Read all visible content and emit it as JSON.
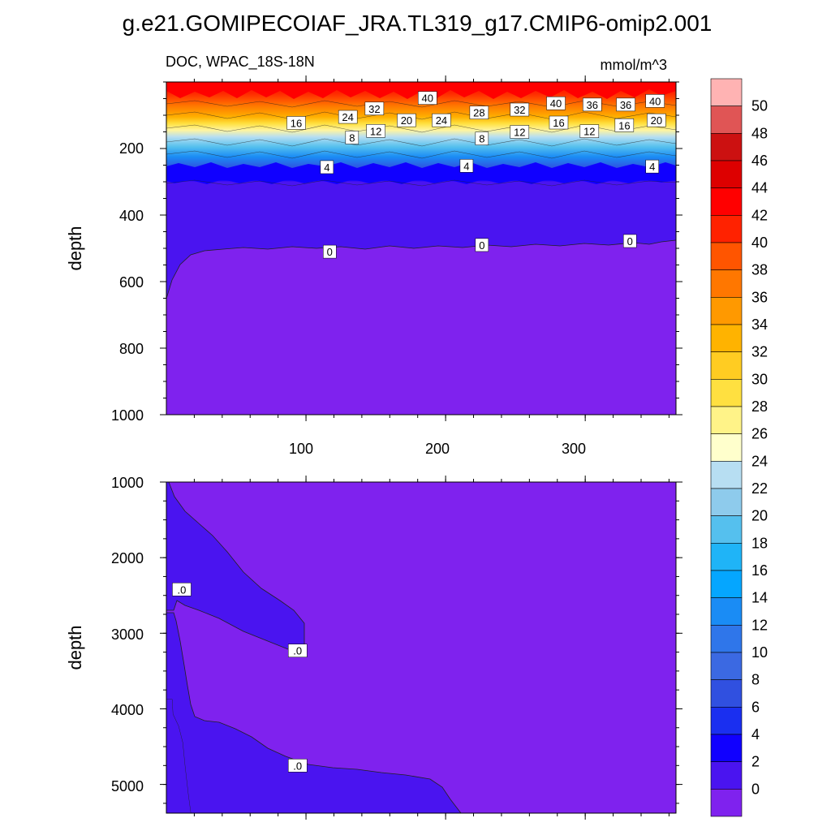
{
  "title": "g.e21.GOMIPECOIAF_JRA.TL319_g17.CMIP6-omip2.001",
  "panels": {
    "top": {
      "left_string": "DOC, WPAC_18S-18N",
      "right_string": "mmol/m^3",
      "ylabel": "depth",
      "yticks": [
        "200",
        "400",
        "600",
        "800",
        "1000"
      ],
      "xticks": [
        "100",
        "200",
        "300"
      ]
    },
    "bottom": {
      "ylabel": "depth",
      "yticks": [
        "1000",
        "2000",
        "3000",
        "4000",
        "5000"
      ]
    }
  },
  "colorbar": {
    "labels": [
      "50",
      "48",
      "46",
      "44",
      "42",
      "40",
      "38",
      "36",
      "34",
      "32",
      "30",
      "28",
      "26",
      "24",
      "22",
      "20",
      "18",
      "16",
      "14",
      "12",
      "10",
      "8",
      "6",
      "4",
      "2",
      "0"
    ],
    "colors": [
      "#ffb3b3",
      "#e05555",
      "#cc1111",
      "#dd0000",
      "#ff0000",
      "#ff2200",
      "#ff5500",
      "#ff7700",
      "#ff9900",
      "#ffb300",
      "#ffcc22",
      "#ffe040",
      "#fff388",
      "#ffffcc",
      "#b7def2",
      "#8ecbec",
      "#55c0ee",
      "#1fb4f7",
      "#05a6ff",
      "#1a8cf5",
      "#2f76ea",
      "#3b69e2",
      "#3050e0",
      "#1a2ff0",
      "#1000ff",
      "#4a14f0",
      "#7f22ee"
    ]
  },
  "chart_data": [
    {
      "type": "heatmap",
      "subtype": "filled contour",
      "variable": "DOC",
      "left_string": "DOC, WPAC_18S-18N",
      "units": "mmol/m^3",
      "ylabel": "depth",
      "y_reversed": true,
      "xlim": [
        0,
        365
      ],
      "ylim": [
        0,
        1000
      ],
      "xticks": [
        100,
        200,
        300
      ],
      "yticks": [
        200,
        400,
        600,
        800,
        1000
      ],
      "contour_levels": [
        0,
        2,
        4,
        6,
        8,
        10,
        12,
        14,
        16,
        18,
        20,
        22,
        24,
        26,
        28,
        30,
        32,
        34,
        36,
        38,
        40,
        42,
        44,
        46,
        48,
        50
      ],
      "contour_labels": [
        {
          "text": "40",
          "x": 187,
          "y": 48
        },
        {
          "text": "40",
          "x": 279,
          "y": 64
        },
        {
          "text": "40",
          "x": 350,
          "y": 57
        },
        {
          "text": "36",
          "x": 305,
          "y": 68
        },
        {
          "text": "36",
          "x": 329,
          "y": 68
        },
        {
          "text": "32",
          "x": 149,
          "y": 80
        },
        {
          "text": "32",
          "x": 253,
          "y": 83
        },
        {
          "text": "28",
          "x": 224,
          "y": 92
        },
        {
          "text": "24",
          "x": 130,
          "y": 105
        },
        {
          "text": "24",
          "x": 197,
          "y": 115
        },
        {
          "text": "20",
          "x": 172,
          "y": 115
        },
        {
          "text": "20",
          "x": 351,
          "y": 115
        },
        {
          "text": "16",
          "x": 93,
          "y": 123
        },
        {
          "text": "16",
          "x": 281,
          "y": 122
        },
        {
          "text": "16",
          "x": 328,
          "y": 130
        },
        {
          "text": "12",
          "x": 150,
          "y": 147
        },
        {
          "text": "12",
          "x": 253,
          "y": 150
        },
        {
          "text": "12",
          "x": 303,
          "y": 148
        },
        {
          "text": "8",
          "x": 133,
          "y": 167
        },
        {
          "text": "8",
          "x": 226,
          "y": 170
        },
        {
          "text": "4",
          "x": 115,
          "y": 256
        },
        {
          "text": "4",
          "x": 215,
          "y": 252
        },
        {
          "text": "4",
          "x": 348,
          "y": 254
        },
        {
          "text": "0",
          "x": 117,
          "y": 510
        },
        {
          "text": "0",
          "x": 226,
          "y": 490
        },
        {
          "text": "0",
          "x": 332,
          "y": 478
        }
      ]
    },
    {
      "type": "heatmap",
      "subtype": "filled contour",
      "variable": "DOC",
      "ylabel": "depth",
      "y_reversed": true,
      "xlim": [
        0,
        365
      ],
      "ylim": [
        1000,
        5380
      ],
      "yticks": [
        1000,
        2000,
        3000,
        4000,
        5000
      ],
      "contour_labels": [
        {
          "text": ".0",
          "x": 11,
          "y": 2420
        },
        {
          "text": ".0",
          "x": 94,
          "y": 3230
        },
        {
          "text": ".0",
          "x": 94,
          "y": 4750
        }
      ]
    }
  ]
}
